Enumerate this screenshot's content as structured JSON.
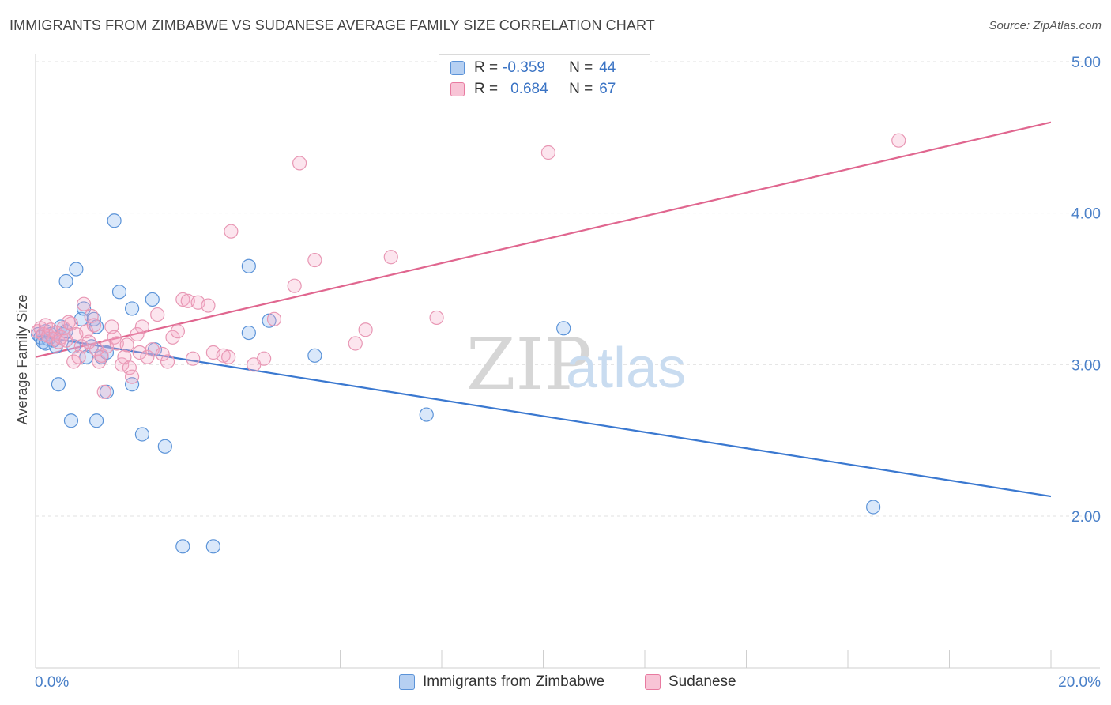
{
  "title": "IMMIGRANTS FROM ZIMBABWE VS SUDANESE AVERAGE FAMILY SIZE CORRELATION CHART",
  "source": "Source: ZipAtlas.com",
  "watermark": {
    "zip": "ZIP",
    "atlas": "atlas"
  },
  "legend": {
    "r_label": "R =",
    "n_label": "N =",
    "rows": [
      {
        "series": "Immigrants from Zimbabwe",
        "r": "-0.359",
        "n": "44",
        "color": "#5b93d8",
        "fill": "#b6d0f2"
      },
      {
        "series": "Sudanese",
        "r": "0.684",
        "n": "67",
        "color": "#e87aa0",
        "fill": "#f8c4d6"
      }
    ]
  },
  "chart_data": {
    "type": "scatter",
    "title": "IMMIGRANTS FROM ZIMBABWE VS SUDANESE AVERAGE FAMILY SIZE CORRELATION CHART",
    "xlabel": "",
    "ylabel": "Average Family Size",
    "xlim": [
      0,
      20
    ],
    "ylim": [
      1.0,
      5.1
    ],
    "x_tick_labels": [
      "0.0%",
      "20.0%"
    ],
    "y_ticks": [
      2.0,
      3.0,
      4.0,
      5.0
    ],
    "y_tick_labels": [
      "2.00",
      "3.00",
      "4.00",
      "5.00"
    ],
    "grid": true,
    "legend_position": "top-center",
    "series": [
      {
        "name": "Immigrants from Zimbabwe",
        "color": "#3a78d0",
        "trend": {
          "x": [
            0,
            20
          ],
          "y": [
            3.19,
            2.13
          ]
        },
        "points": [
          [
            0.05,
            3.2
          ],
          [
            0.1,
            3.18
          ],
          [
            0.15,
            3.15
          ],
          [
            0.2,
            3.22
          ],
          [
            0.25,
            3.17
          ],
          [
            0.3,
            3.2
          ],
          [
            0.35,
            3.16
          ],
          [
            0.4,
            3.12
          ],
          [
            0.45,
            2.87
          ],
          [
            0.5,
            3.25
          ],
          [
            0.55,
            3.2
          ],
          [
            0.6,
            3.55
          ],
          [
            0.7,
            2.63
          ],
          [
            0.75,
            3.12
          ],
          [
            0.8,
            3.63
          ],
          [
            0.9,
            3.3
          ],
          [
            0.95,
            3.37
          ],
          [
            1.0,
            3.05
          ],
          [
            1.1,
            3.12
          ],
          [
            1.15,
            3.3
          ],
          [
            1.2,
            3.25
          ],
          [
            1.2,
            2.63
          ],
          [
            1.3,
            3.05
          ],
          [
            1.4,
            3.08
          ],
          [
            1.4,
            2.82
          ],
          [
            1.55,
            3.95
          ],
          [
            1.65,
            3.48
          ],
          [
            1.9,
            3.37
          ],
          [
            1.9,
            2.87
          ],
          [
            2.1,
            2.54
          ],
          [
            2.3,
            3.43
          ],
          [
            2.35,
            3.1
          ],
          [
            2.55,
            2.46
          ],
          [
            2.9,
            1.8
          ],
          [
            3.5,
            1.8
          ],
          [
            4.2,
            3.65
          ],
          [
            4.2,
            3.21
          ],
          [
            4.6,
            3.29
          ],
          [
            5.5,
            3.06
          ],
          [
            7.7,
            2.67
          ],
          [
            10.4,
            3.24
          ],
          [
            16.5,
            2.06
          ],
          [
            0.2,
            3.14
          ],
          [
            0.6,
            3.22
          ]
        ]
      },
      {
        "name": "Sudanese",
        "color": "#e0668f",
        "trend": {
          "x": [
            0,
            20
          ],
          "y": [
            3.05,
            4.6
          ]
        },
        "points": [
          [
            0.05,
            3.22
          ],
          [
            0.1,
            3.24
          ],
          [
            0.15,
            3.2
          ],
          [
            0.2,
            3.26
          ],
          [
            0.25,
            3.19
          ],
          [
            0.3,
            3.23
          ],
          [
            0.35,
            3.17
          ],
          [
            0.4,
            3.21
          ],
          [
            0.45,
            3.15
          ],
          [
            0.5,
            3.18
          ],
          [
            0.55,
            3.24
          ],
          [
            0.6,
            3.16
          ],
          [
            0.7,
            3.27
          ],
          [
            0.75,
            3.02
          ],
          [
            0.8,
            3.2
          ],
          [
            0.85,
            3.05
          ],
          [
            0.9,
            3.12
          ],
          [
            0.95,
            3.4
          ],
          [
            1.0,
            3.22
          ],
          [
            1.05,
            3.15
          ],
          [
            1.1,
            3.32
          ],
          [
            1.15,
            3.26
          ],
          [
            1.2,
            3.1
          ],
          [
            1.25,
            3.02
          ],
          [
            1.3,
            3.06
          ],
          [
            1.35,
            2.82
          ],
          [
            1.4,
            3.12
          ],
          [
            1.5,
            3.25
          ],
          [
            1.55,
            3.18
          ],
          [
            1.6,
            3.14
          ],
          [
            1.7,
            3.0
          ],
          [
            1.75,
            3.05
          ],
          [
            1.8,
            3.13
          ],
          [
            1.85,
            2.98
          ],
          [
            1.9,
            2.92
          ],
          [
            2.0,
            3.2
          ],
          [
            2.05,
            3.08
          ],
          [
            2.1,
            3.25
          ],
          [
            2.2,
            3.05
          ],
          [
            2.3,
            3.1
          ],
          [
            2.4,
            3.33
          ],
          [
            2.5,
            3.07
          ],
          [
            2.6,
            3.02
          ],
          [
            2.7,
            3.18
          ],
          [
            2.8,
            3.22
          ],
          [
            2.9,
            3.43
          ],
          [
            3.0,
            3.42
          ],
          [
            3.1,
            3.04
          ],
          [
            3.2,
            3.41
          ],
          [
            3.4,
            3.39
          ],
          [
            3.5,
            3.08
          ],
          [
            3.7,
            3.06
          ],
          [
            3.8,
            3.05
          ],
          [
            3.85,
            3.88
          ],
          [
            4.3,
            3.0
          ],
          [
            4.5,
            3.04
          ],
          [
            4.7,
            3.3
          ],
          [
            5.1,
            3.52
          ],
          [
            5.2,
            4.33
          ],
          [
            5.5,
            3.69
          ],
          [
            6.3,
            3.14
          ],
          [
            6.5,
            3.23
          ],
          [
            7.0,
            3.71
          ],
          [
            7.9,
            3.31
          ],
          [
            10.1,
            4.4
          ],
          [
            17.0,
            4.48
          ],
          [
            0.65,
            3.28
          ]
        ]
      }
    ]
  }
}
